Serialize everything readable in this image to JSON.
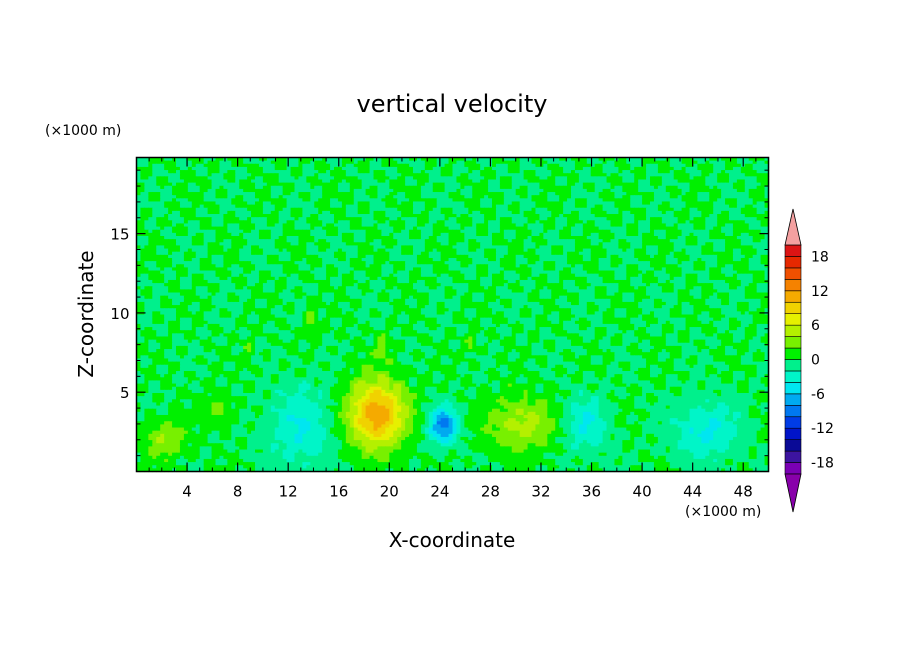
{
  "chart_data": {
    "type": "heatmap",
    "title": "vertical velocity",
    "xlabel": "X-coordinate",
    "ylabel": "Z-coordinate",
    "x_unit_label": "(×1000 m)",
    "y_unit_label": "(×1000 m)",
    "xlim": [
      0,
      50
    ],
    "ylim": [
      0,
      19.8
    ],
    "x_ticks": [
      4,
      8,
      12,
      16,
      20,
      24,
      28,
      32,
      36,
      40,
      44,
      48
    ],
    "x_tick_labels": [
      "4",
      "8",
      "12",
      "16",
      "20",
      "24",
      "28",
      "32",
      "36",
      "40",
      "44",
      "48"
    ],
    "y_ticks": [
      5,
      10,
      15
    ],
    "y_tick_labels": [
      "5",
      "10",
      "15"
    ],
    "colorbar": {
      "levels": [
        -20,
        -18,
        -16,
        -14,
        -12,
        -10,
        -8,
        -6,
        -4,
        -2,
        0,
        2,
        4,
        6,
        8,
        10,
        12,
        14,
        16,
        18,
        20
      ],
      "labels": [
        "18",
        "12",
        "6",
        "0",
        "-6",
        "-12",
        "-18"
      ],
      "label_values": [
        18,
        12,
        6,
        0,
        -6,
        -12,
        -18
      ],
      "colors": [
        "#7a00b4",
        "#3c14a0",
        "#0a0a96",
        "#0014c8",
        "#003ce6",
        "#0078f0",
        "#00aaf0",
        "#00e6f0",
        "#00f5c8",
        "#00f08c",
        "#00f000",
        "#78f000",
        "#b4f000",
        "#e6f000",
        "#f0d200",
        "#f5aa00",
        "#f58200",
        "#f05000",
        "#e62800",
        "#dc1414"
      ],
      "under_color": "#8800aa",
      "over_color": "#f4a0a0"
    },
    "features": [
      {
        "x": 19,
        "z": 3.6,
        "sx": 2.2,
        "sz": 2.1,
        "w": 12
      },
      {
        "x": 30.5,
        "z": 3.0,
        "sx": 2.6,
        "sz": 1.7,
        "w": 5
      },
      {
        "x": 2.2,
        "z": 2.0,
        "sx": 1.6,
        "sz": 1.2,
        "w": 4
      },
      {
        "x": 6.5,
        "z": 3.9,
        "sx": 1.0,
        "sz": 0.9,
        "w": 3
      },
      {
        "x": 24.3,
        "z": 2.9,
        "sx": 1.1,
        "sz": 1.1,
        "w": -9
      },
      {
        "x": 13,
        "z": 2.8,
        "sx": 2.5,
        "sz": 2.6,
        "w": -4
      },
      {
        "x": 35.5,
        "z": 3.0,
        "sx": 1.7,
        "sz": 1.8,
        "w": -4
      },
      {
        "x": 45,
        "z": 2.6,
        "sx": 2.4,
        "sz": 1.8,
        "w": -4.5
      },
      {
        "x": 13.8,
        "z": 9.5,
        "sx": 0.5,
        "sz": 1.0,
        "w": 3
      },
      {
        "x": 26.5,
        "z": 8.0,
        "sx": 0.4,
        "sz": 0.9,
        "w": 2.5
      },
      {
        "x": 19.5,
        "z": 7.8,
        "sx": 0.6,
        "sz": 0.8,
        "w": 2.5
      },
      {
        "x": 8.8,
        "z": 7.5,
        "sx": 0.4,
        "sz": 0.9,
        "w": 2.2
      }
    ]
  }
}
